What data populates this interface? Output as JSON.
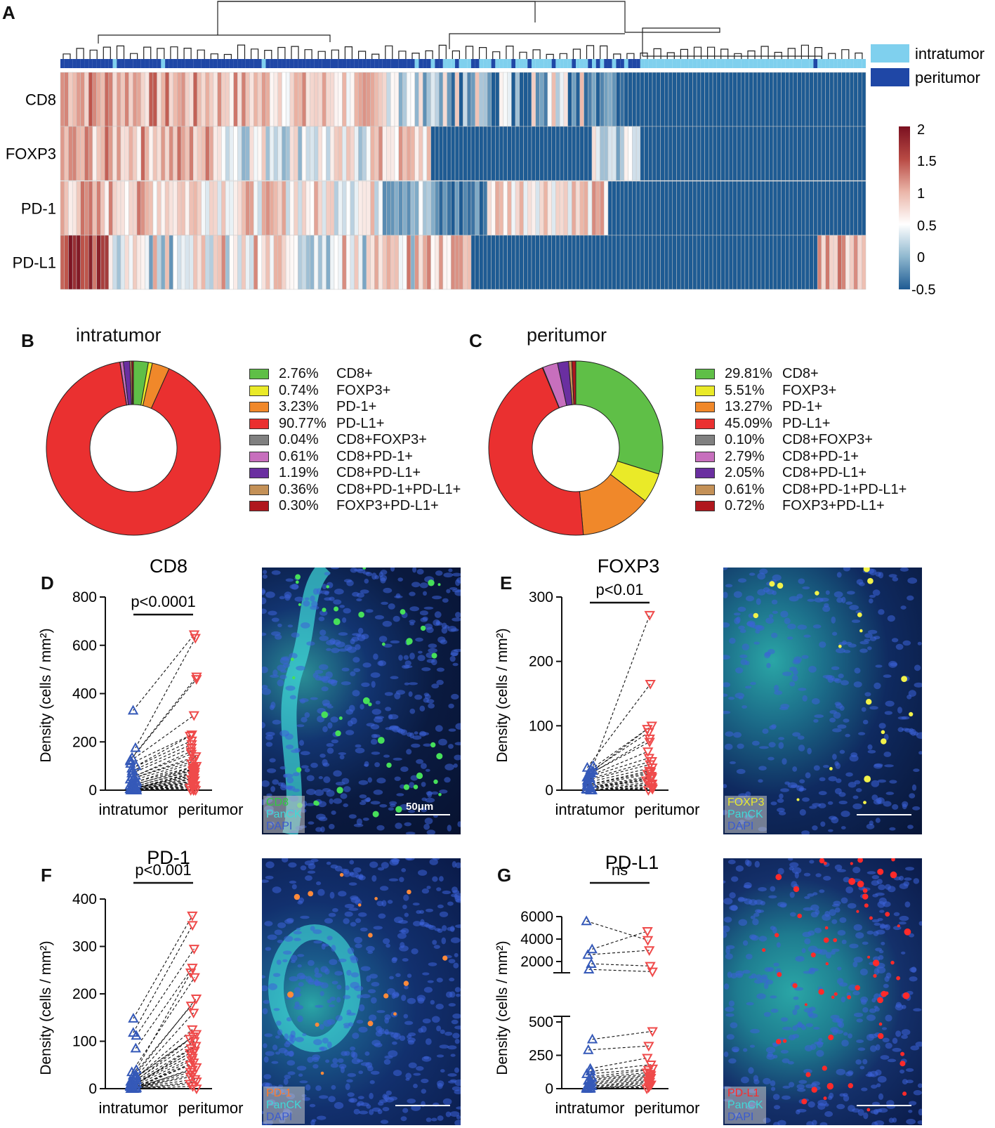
{
  "panels": {
    "A": "A",
    "B": "B",
    "C": "C",
    "D": "D",
    "E": "E",
    "F": "F",
    "G": "G"
  },
  "heatmap": {
    "rows": [
      "CD8",
      "FOXP3",
      "PD-1",
      "PD-L1"
    ],
    "legend": [
      {
        "label": "intratumor",
        "color": "#7fd0ee"
      },
      {
        "label": "peritumor",
        "color": "#1f47a6"
      }
    ],
    "colorbar": {
      "ticks": [
        "2",
        "1.5",
        "1",
        "0.5",
        "0",
        "-0.5"
      ]
    }
  },
  "donuts": [
    {
      "title": "intratumor",
      "items": [
        {
          "pct": "2.76%",
          "label": "CD8+",
          "value": 2.76,
          "color": "#5fbf47"
        },
        {
          "pct": "0.74%",
          "label": "FOXP3+",
          "value": 0.74,
          "color": "#eaea28"
        },
        {
          "pct": "3.23%",
          "label": "PD-1+",
          "value": 3.23,
          "color": "#f0882a"
        },
        {
          "pct": "90.77%",
          "label": "PD-L1+",
          "value": 90.77,
          "color": "#ea3030"
        },
        {
          "pct": "0.04%",
          "label": "CD8+FOXP3+",
          "value": 0.04,
          "color": "#808080"
        },
        {
          "pct": "0.61%",
          "label": "CD8+PD-1+",
          "value": 0.61,
          "color": "#c76fbd"
        },
        {
          "pct": "1.19%",
          "label": "CD8+PD-L1+",
          "value": 1.19,
          "color": "#6a2fa0"
        },
        {
          "pct": "0.36%",
          "label": "CD8+PD-1+PD-L1+",
          "value": 0.36,
          "color": "#c49157"
        },
        {
          "pct": "0.30%",
          "label": "FOXP3+PD-L1+",
          "value": 0.3,
          "color": "#b0171e"
        }
      ]
    },
    {
      "title": "peritumor",
      "items": [
        {
          "pct": "29.81%",
          "label": "CD8+",
          "value": 29.81,
          "color": "#5fbf47"
        },
        {
          "pct": "5.51%",
          "label": "FOXP3+",
          "value": 5.51,
          "color": "#eaea28"
        },
        {
          "pct": "13.27%",
          "label": "PD-1+",
          "value": 13.27,
          "color": "#f0882a"
        },
        {
          "pct": "45.09%",
          "label": "PD-L1+",
          "value": 45.09,
          "color": "#ea3030"
        },
        {
          "pct": "0.10%",
          "label": "CD8+FOXP3+",
          "value": 0.1,
          "color": "#808080"
        },
        {
          "pct": "2.79%",
          "label": "CD8+PD-1+",
          "value": 2.79,
          "color": "#c76fbd"
        },
        {
          "pct": "2.05%",
          "label": "CD8+PD-L1+",
          "value": 2.05,
          "color": "#6a2fa0"
        },
        {
          "pct": "0.61%",
          "label": "CD8+PD-1+PD-L1+",
          "value": 0.61,
          "color": "#c49157"
        },
        {
          "pct": "0.72%",
          "label": "FOXP3+PD-L1+",
          "value": 0.72,
          "color": "#b0171e"
        }
      ]
    }
  ],
  "chart_data": [
    {
      "type": "scatter",
      "panel": "D",
      "title": "CD8",
      "ylabel": "Density (cells / mm²)",
      "categories": [
        "intratumor",
        "peritumor"
      ],
      "ylim": [
        0,
        800
      ],
      "yticks": [
        0,
        200,
        400,
        600,
        800
      ],
      "pvalue": "p<0.0001",
      "pairs": [
        [
          330,
          645
        ],
        [
          175,
          630
        ],
        [
          135,
          470
        ],
        [
          125,
          460
        ],
        [
          120,
          310
        ],
        [
          110,
          230
        ],
        [
          100,
          225
        ],
        [
          90,
          205
        ],
        [
          80,
          190
        ],
        [
          70,
          175
        ],
        [
          60,
          160
        ],
        [
          55,
          150
        ],
        [
          50,
          140
        ],
        [
          45,
          130
        ],
        [
          40,
          120
        ],
        [
          35,
          110
        ],
        [
          30,
          100
        ],
        [
          25,
          95
        ],
        [
          20,
          90
        ],
        [
          15,
          85
        ],
        [
          12,
          80
        ],
        [
          10,
          75
        ],
        [
          8,
          70
        ],
        [
          6,
          65
        ],
        [
          5,
          60
        ],
        [
          4,
          55
        ],
        [
          3,
          50
        ],
        [
          2,
          45
        ],
        [
          1,
          40
        ],
        [
          0,
          35
        ],
        [
          0,
          30
        ],
        [
          0,
          25
        ],
        [
          0,
          20
        ],
        [
          0,
          15
        ],
        [
          0,
          10
        ],
        [
          0,
          5
        ],
        [
          0,
          2
        ],
        [
          0,
          0
        ],
        [
          0,
          0
        ],
        [
          0,
          0
        ]
      ],
      "image": {
        "channels": [
          {
            "label": "CD8",
            "color": "#2ecc40"
          },
          {
            "label": "PanCK",
            "color": "#3fd8d8"
          },
          {
            "label": "DAPI",
            "color": "#3a5bd0"
          }
        ],
        "scale_label": "50μm"
      }
    },
    {
      "type": "scatter",
      "panel": "E",
      "title": "FOXP3",
      "ylabel": "Density (cells / mm²)",
      "categories": [
        "intratumor",
        "peritumor"
      ],
      "ylim": [
        0,
        300
      ],
      "yticks": [
        0,
        100,
        200,
        300
      ],
      "pvalue": "p<0.01",
      "pairs": [
        [
          38,
          272
        ],
        [
          35,
          165
        ],
        [
          32,
          100
        ],
        [
          30,
          95
        ],
        [
          28,
          90
        ],
        [
          26,
          80
        ],
        [
          25,
          75
        ],
        [
          22,
          60
        ],
        [
          20,
          50
        ],
        [
          18,
          45
        ],
        [
          15,
          40
        ],
        [
          12,
          35
        ],
        [
          10,
          30
        ],
        [
          8,
          28
        ],
        [
          6,
          25
        ],
        [
          5,
          22
        ],
        [
          4,
          20
        ],
        [
          3,
          18
        ],
        [
          2,
          15
        ],
        [
          1,
          12
        ],
        [
          0,
          10
        ],
        [
          0,
          8
        ],
        [
          0,
          5
        ],
        [
          0,
          3
        ],
        [
          0,
          2
        ],
        [
          0,
          0
        ]
      ],
      "image": {
        "channels": [
          {
            "label": "FOXP3",
            "color": "#e8e830"
          },
          {
            "label": "PanCK",
            "color": "#3fd8d8"
          },
          {
            "label": "DAPI",
            "color": "#3a5bd0"
          }
        ]
      }
    },
    {
      "type": "scatter",
      "panel": "F",
      "title": "PD-1",
      "ylabel": "Density (cells / mm²)",
      "categories": [
        "intratumor",
        "peritumor"
      ],
      "ylim": [
        0,
        400
      ],
      "yticks": [
        0,
        100,
        200,
        300,
        400
      ],
      "pvalue": "p<0.001",
      "pairs": [
        [
          148,
          365
        ],
        [
          118,
          345
        ],
        [
          112,
          295
        ],
        [
          85,
          255
        ],
        [
          40,
          245
        ],
        [
          35,
          235
        ],
        [
          30,
          190
        ],
        [
          28,
          175
        ],
        [
          25,
          160
        ],
        [
          22,
          125
        ],
        [
          20,
          115
        ],
        [
          18,
          110
        ],
        [
          15,
          105
        ],
        [
          12,
          100
        ],
        [
          10,
          90
        ],
        [
          8,
          85
        ],
        [
          6,
          80
        ],
        [
          5,
          75
        ],
        [
          4,
          70
        ],
        [
          3,
          65
        ],
        [
          2,
          60
        ],
        [
          1,
          55
        ],
        [
          0,
          50
        ],
        [
          0,
          45
        ],
        [
          0,
          40
        ],
        [
          0,
          35
        ],
        [
          0,
          30
        ],
        [
          0,
          25
        ],
        [
          0,
          20
        ],
        [
          0,
          15
        ],
        [
          0,
          10
        ],
        [
          0,
          5
        ],
        [
          0,
          0
        ]
      ],
      "image": {
        "channels": [
          {
            "label": "PD-1",
            "color": "#ff7a2a"
          },
          {
            "label": "PanCK",
            "color": "#3fd8d8"
          },
          {
            "label": "DAPI",
            "color": "#3a5bd0"
          }
        ]
      }
    },
    {
      "type": "scatter",
      "panel": "G",
      "title": "PD-L1",
      "ylabel": "Density (cells / mm²)",
      "categories": [
        "intratumor",
        "peritumor"
      ],
      "ylim_lower": [
        0,
        500
      ],
      "ylim_upper": [
        1000,
        6000
      ],
      "yticks_lower": [
        0,
        250,
        500
      ],
      "yticks_upper": [
        2000,
        4000,
        6000
      ],
      "pvalue": "ns",
      "pairs": [
        [
          5600,
          3900
        ],
        [
          3100,
          4700
        ],
        [
          2600,
          3000
        ],
        [
          1800,
          1600
        ],
        [
          1300,
          1100
        ],
        [
          370,
          430
        ],
        [
          290,
          320
        ],
        [
          150,
          230
        ],
        [
          130,
          180
        ],
        [
          110,
          150
        ],
        [
          90,
          140
        ],
        [
          80,
          120
        ],
        [
          70,
          110
        ],
        [
          60,
          100
        ],
        [
          50,
          90
        ],
        [
          40,
          80
        ],
        [
          30,
          70
        ],
        [
          20,
          60
        ],
        [
          10,
          50
        ],
        [
          5,
          40
        ],
        [
          0,
          30
        ],
        [
          0,
          20
        ],
        [
          0,
          10
        ],
        [
          0,
          0
        ]
      ],
      "image": {
        "channels": [
          {
            "label": "PD-L1",
            "color": "#ff2a2a"
          },
          {
            "label": "PanCK",
            "color": "#3fd8d8"
          },
          {
            "label": "DAPI",
            "color": "#3a5bd0"
          }
        ]
      }
    }
  ]
}
